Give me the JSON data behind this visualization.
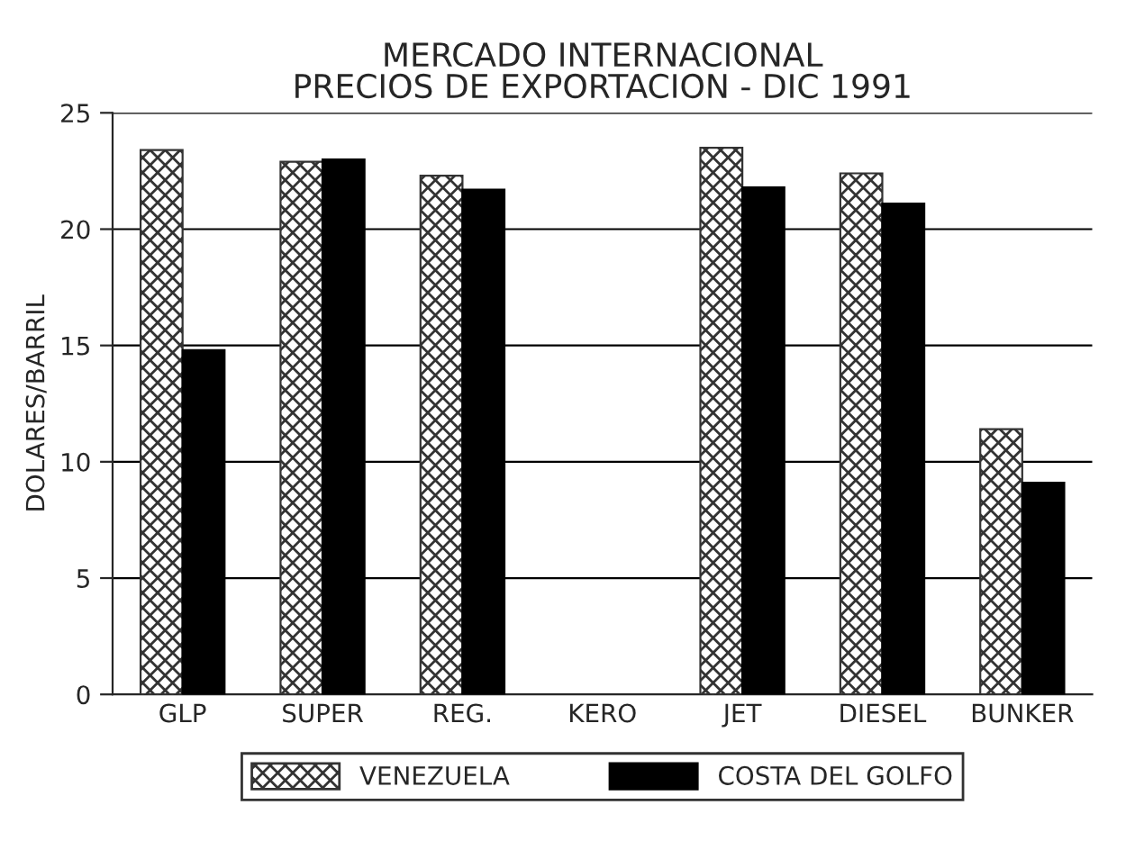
{
  "chart_data": {
    "type": "bar",
    "title": "MERCADO INTERNACIONAL\nPRECIOS DE EXPORTACION - DIC 1991",
    "ylabel": "DOLARES/BARRIL",
    "categories": [
      "GLP",
      "SUPER",
      "REG.",
      "KERO",
      "JET",
      "DIESEL",
      "BUNKER"
    ],
    "series": [
      {
        "name": "VENEZUELA",
        "color": "#333333",
        "values": [
          23.4,
          22.9,
          22.3,
          null,
          23.5,
          22.4,
          11.4
        ]
      },
      {
        "name": "COSTA DEL GOLFO",
        "color": "#000000",
        "values": [
          14.8,
          23.0,
          21.7,
          null,
          21.8,
          21.1,
          9.1
        ]
      }
    ],
    "ylim": [
      0,
      25
    ],
    "yticks": [
      0,
      5,
      10,
      15,
      20,
      25
    ],
    "grid": "y",
    "legend": "bottom"
  }
}
